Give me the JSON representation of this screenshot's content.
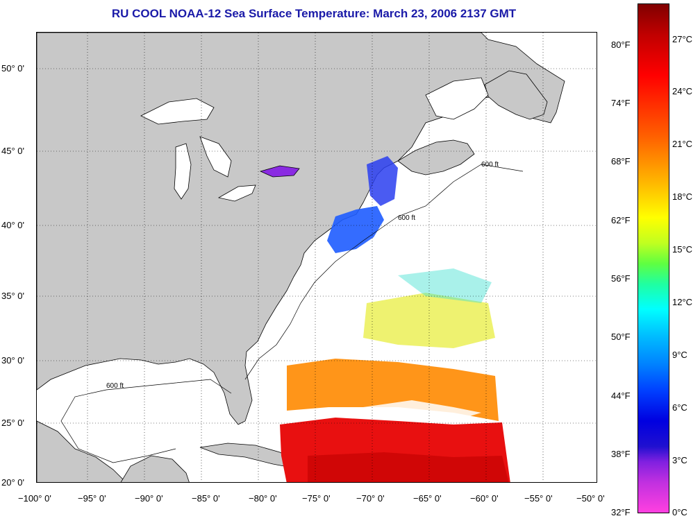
{
  "title": "RU COOL  NOAA-12  Sea Surface Temperature:  March 23, 2006 2137 GMT",
  "lat_labels": [
    "50° 0'",
    "45° 0'",
    "40° 0'",
    "35° 0'",
    "30° 0'",
    "25° 0'",
    "20° 0'"
  ],
  "lon_labels": [
    "−100° 0'",
    "−95° 0'",
    "−90° 0'",
    "−85° 0'",
    "−80° 0'",
    "−75° 0'",
    "−70° 0'",
    "−65° 0'",
    "−60° 0'",
    "−55° 0'",
    "−50° 0'"
  ],
  "fahrenheit_labels": [
    "80°F",
    "74°F",
    "68°F",
    "62°F",
    "56°F",
    "50°F",
    "44°F",
    "38°F",
    "32°F"
  ],
  "celsius_labels": [
    "27°C",
    "24°C",
    "21°C",
    "18°C",
    "15°C",
    "12°C",
    "9°C",
    "6°C",
    "3°C",
    "0°C"
  ],
  "contour_label": "600 ft",
  "colors": {
    "title": "#1a1aa8",
    "land": "#c8c8c8",
    "water": "#ffffff"
  }
}
